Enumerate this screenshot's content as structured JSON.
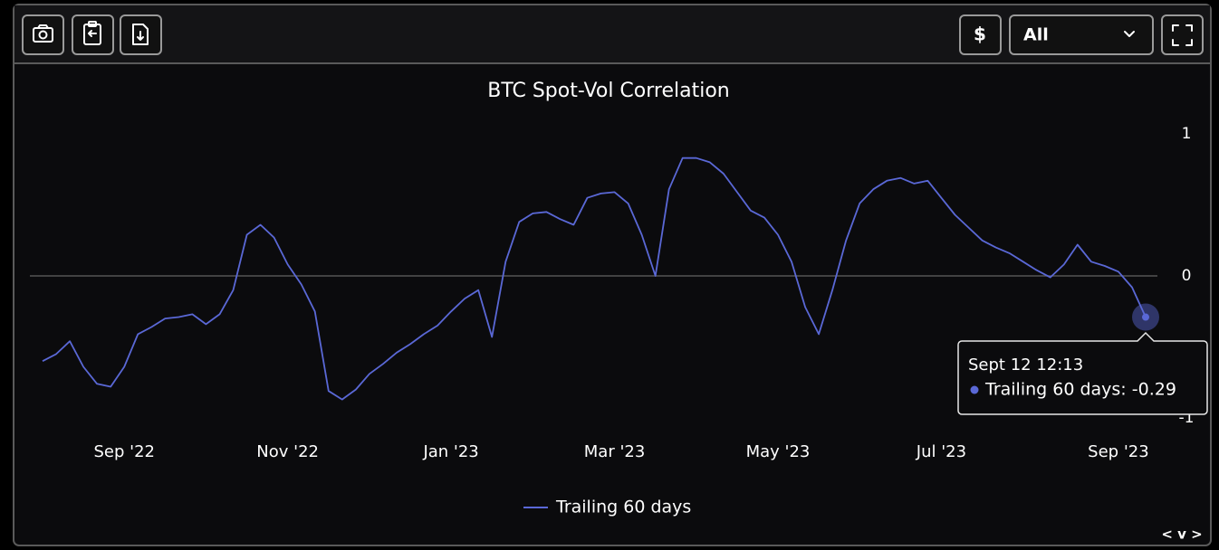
{
  "toolbar": {
    "currency": "$",
    "range": "All"
  },
  "chart_data": {
    "type": "line",
    "title": "BTC Spot-Vol Correlation",
    "categories": [
      null,
      null,
      null,
      null,
      null,
      null,
      "Sep '22",
      null,
      null,
      null,
      null,
      null,
      null,
      null,
      null,
      null,
      null,
      null,
      "Nov '22",
      null,
      null,
      null,
      null,
      null,
      null,
      null,
      null,
      null,
      null,
      null,
      "Jan '23",
      null,
      null,
      null,
      null,
      null,
      null,
      null,
      null,
      null,
      null,
      null,
      "Mar '23",
      null,
      null,
      null,
      null,
      null,
      null,
      null,
      null,
      null,
      null,
      null,
      "May '23",
      null,
      null,
      null,
      null,
      null,
      null,
      null,
      null,
      null,
      null,
      null,
      "Jul '23",
      null,
      null,
      null,
      null,
      null,
      null,
      null,
      null,
      null,
      null,
      null,
      null,
      "Sep '23",
      null,
      null
    ],
    "series": [
      {
        "name": "Trailing 60 days",
        "color": "#5a68d6",
        "values": [
          -0.6,
          -0.55,
          -0.46,
          -0.64,
          -0.76,
          -0.78,
          -0.64,
          -0.41,
          -0.36,
          -0.3,
          -0.29,
          -0.27,
          -0.34,
          -0.27,
          -0.1,
          0.29,
          0.36,
          0.27,
          0.08,
          -0.06,
          -0.25,
          -0.81,
          -0.87,
          -0.8,
          -0.69,
          -0.62,
          -0.54,
          -0.48,
          -0.41,
          -0.35,
          -0.25,
          -0.16,
          -0.1,
          -0.43,
          0.1,
          0.38,
          0.44,
          0.45,
          0.4,
          0.36,
          0.55,
          0.58,
          0.59,
          0.51,
          0.29,
          0.0,
          0.61,
          0.83,
          0.83,
          0.8,
          0.72,
          0.59,
          0.46,
          0.41,
          0.29,
          0.1,
          -0.22,
          -0.41,
          -0.1,
          0.25,
          0.51,
          0.61,
          0.67,
          0.69,
          0.65,
          0.67,
          0.55,
          0.43,
          0.34,
          0.25,
          0.2,
          0.16,
          0.1,
          0.04,
          -0.01,
          0.08,
          0.22,
          0.1,
          0.07,
          0.03,
          -0.08,
          -0.29
        ]
      }
    ],
    "ylim": [
      -1,
      1
    ],
    "yticks": [
      -1,
      0,
      1
    ],
    "zeroline": true,
    "tooltip": {
      "date": "Sept 12 12:13",
      "text": "Trailing 60 days: -0.29"
    }
  },
  "footer": {
    "nav": "< v >"
  }
}
